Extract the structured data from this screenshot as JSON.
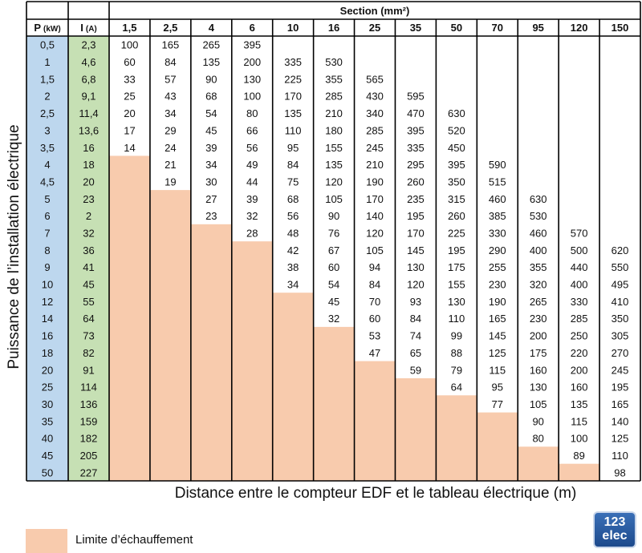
{
  "header": {
    "section_label": "Section (mm²)",
    "power_label": "P",
    "power_unit": "(kW)",
    "current_label": "I",
    "current_unit": "(A)"
  },
  "axis": {
    "ylabel": "Puissance de l’installation électrique",
    "xlabel": "Distance entre le compteur EDF et le tableau électrique (m)"
  },
  "legend": {
    "label": "Limite d’échauffement",
    "color": "#f8cbad"
  },
  "logo": {
    "number": "123",
    "text": "elec"
  },
  "colors": {
    "power_col": "#bdd7ee",
    "current_col": "#c6e0b4",
    "limit": "#f8cbad",
    "grid": "#000000"
  },
  "chart_data": {
    "type": "table",
    "columns": [
      "1,5",
      "2,5",
      "4",
      "6",
      "10",
      "16",
      "25",
      "35",
      "50",
      "70",
      "95",
      "120",
      "150"
    ],
    "power_kw": [
      "0,5",
      "1",
      "1,5",
      "2",
      "2,5",
      "3",
      "3,5",
      "4",
      "4,5",
      "5",
      "6",
      "7",
      "8",
      "9",
      "10",
      "12",
      "14",
      "16",
      "18",
      "20",
      "25",
      "30",
      "35",
      "40",
      "45",
      "50"
    ],
    "current_a": [
      "2,3",
      "4,6",
      "6,8",
      "9,1",
      "11,4",
      "13,6",
      "16",
      "18",
      "20",
      "23",
      "2",
      "32",
      "36",
      "41",
      "45",
      "55",
      "64",
      "73",
      "82",
      "91",
      "114",
      "136",
      "159",
      "182",
      "205",
      "227"
    ],
    "rows": [
      [
        100,
        165,
        265,
        395,
        null,
        null,
        null,
        null,
        null,
        null,
        null,
        null,
        null
      ],
      [
        60,
        84,
        135,
        200,
        335,
        530,
        null,
        null,
        null,
        null,
        null,
        null,
        null
      ],
      [
        33,
        57,
        90,
        130,
        225,
        355,
        565,
        null,
        null,
        null,
        null,
        null,
        null
      ],
      [
        25,
        43,
        68,
        100,
        170,
        285,
        430,
        595,
        null,
        null,
        null,
        null,
        null
      ],
      [
        20,
        34,
        54,
        80,
        135,
        210,
        340,
        470,
        630,
        null,
        null,
        null,
        null
      ],
      [
        17,
        29,
        45,
        66,
        110,
        180,
        285,
        395,
        520,
        null,
        null,
        null,
        null
      ],
      [
        14,
        24,
        39,
        56,
        95,
        155,
        245,
        335,
        450,
        null,
        null,
        null,
        null
      ],
      [
        null,
        21,
        34,
        49,
        84,
        135,
        210,
        295,
        395,
        590,
        null,
        null,
        null
      ],
      [
        null,
        19,
        30,
        44,
        75,
        120,
        190,
        260,
        350,
        515,
        null,
        null,
        null
      ],
      [
        null,
        null,
        27,
        39,
        68,
        105,
        170,
        235,
        315,
        460,
        630,
        null,
        null
      ],
      [
        null,
        null,
        23,
        32,
        56,
        90,
        140,
        195,
        260,
        385,
        530,
        null,
        null
      ],
      [
        null,
        null,
        null,
        28,
        48,
        76,
        120,
        170,
        225,
        330,
        460,
        570,
        null
      ],
      [
        null,
        null,
        null,
        null,
        42,
        67,
        105,
        145,
        195,
        290,
        400,
        500,
        620
      ],
      [
        null,
        null,
        null,
        null,
        38,
        60,
        94,
        130,
        175,
        255,
        355,
        440,
        550
      ],
      [
        null,
        null,
        null,
        null,
        34,
        54,
        84,
        120,
        155,
        230,
        320,
        400,
        495
      ],
      [
        null,
        null,
        null,
        null,
        null,
        45,
        70,
        93,
        130,
        190,
        265,
        330,
        410
      ],
      [
        null,
        null,
        null,
        null,
        null,
        32,
        60,
        84,
        110,
        165,
        230,
        285,
        350
      ],
      [
        null,
        null,
        null,
        null,
        null,
        null,
        53,
        74,
        99,
        145,
        200,
        250,
        305
      ],
      [
        null,
        null,
        null,
        null,
        null,
        null,
        47,
        65,
        88,
        125,
        175,
        220,
        270
      ],
      [
        null,
        null,
        null,
        null,
        null,
        null,
        null,
        59,
        79,
        115,
        160,
        200,
        245
      ],
      [
        null,
        null,
        null,
        null,
        null,
        null,
        null,
        null,
        64,
        95,
        130,
        160,
        195
      ],
      [
        null,
        null,
        null,
        null,
        null,
        null,
        null,
        null,
        null,
        77,
        105,
        135,
        165
      ],
      [
        null,
        null,
        null,
        null,
        null,
        null,
        null,
        null,
        null,
        null,
        90,
        115,
        140
      ],
      [
        null,
        null,
        null,
        null,
        null,
        null,
        null,
        null,
        null,
        null,
        80,
        100,
        125
      ],
      [
        null,
        null,
        null,
        null,
        null,
        null,
        null,
        null,
        null,
        null,
        null,
        89,
        110
      ],
      [
        null,
        null,
        null,
        null,
        null,
        null,
        null,
        null,
        null,
        null,
        null,
        null,
        98
      ]
    ],
    "limit_start_row": [
      7,
      9,
      11,
      12,
      15,
      17,
      19,
      20,
      21,
      22,
      24,
      25,
      26
    ]
  }
}
